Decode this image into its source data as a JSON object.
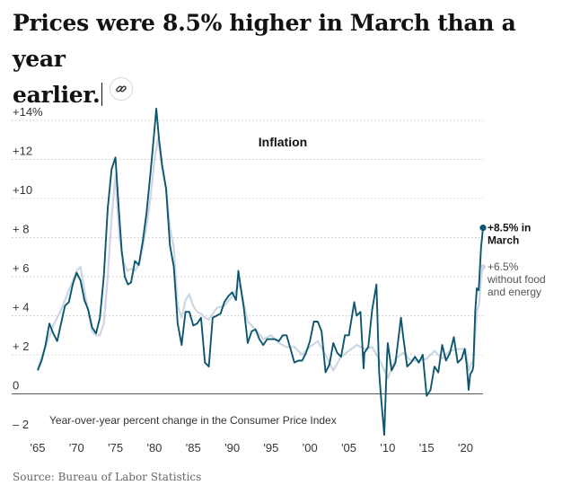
{
  "headline": {
    "line1": "Prices were 8.5% higher in March than a year",
    "line2": "earlier."
  },
  "link_icon": "link-icon",
  "source": "Source: Bureau of Labor Statistics",
  "colors": {
    "headline_series": "#0c5670",
    "core_series": "#ccd7e2",
    "zero_line": "#5a5a5a",
    "gridline": "#c8c8c8",
    "tick_text": "#333333",
    "annotation_core_text": "#555555"
  },
  "chart_data": {
    "type": "line",
    "title": "Inflation",
    "subtitle": "Year-over-year percent change in the Consumer Price Index",
    "xlabel": "",
    "ylabel": "",
    "xlim": [
      1965,
      2022.25
    ],
    "ylim": [
      -2,
      14
    ],
    "grid": true,
    "x_ticks": [
      1965,
      1970,
      1975,
      1980,
      1985,
      1990,
      1995,
      2000,
      2005,
      2010,
      2015,
      2020
    ],
    "x_tick_labels": [
      "'65",
      "'70",
      "'75",
      "'80",
      "'85",
      "'90",
      "'95",
      "'00",
      "'05",
      "'10",
      "'15",
      "'20"
    ],
    "y_ticks": [
      -2,
      0,
      2,
      4,
      6,
      8,
      10,
      12,
      14
    ],
    "y_tick_labels": [
      "– 2",
      "0",
      "+ 2",
      "+ 4",
      "+ 6",
      "+ 8",
      "+10",
      "+12",
      "+14%"
    ],
    "series": [
      {
        "name": "Consumer Price Index",
        "end_label": [
          "+8.5% in",
          "March"
        ],
        "points": [
          [
            1965.0,
            1.2
          ],
          [
            1965.5,
            1.7
          ],
          [
            1966.0,
            2.5
          ],
          [
            1966.5,
            3.6
          ],
          [
            1967.0,
            3.1
          ],
          [
            1967.5,
            2.7
          ],
          [
            1968.0,
            3.6
          ],
          [
            1968.5,
            4.5
          ],
          [
            1969.0,
            4.7
          ],
          [
            1969.5,
            5.6
          ],
          [
            1970.0,
            6.2
          ],
          [
            1970.5,
            5.8
          ],
          [
            1971.0,
            4.8
          ],
          [
            1971.5,
            4.3
          ],
          [
            1972.0,
            3.4
          ],
          [
            1972.5,
            3.1
          ],
          [
            1973.0,
            3.9
          ],
          [
            1973.5,
            6.0
          ],
          [
            1974.0,
            9.5
          ],
          [
            1974.5,
            11.5
          ],
          [
            1975.0,
            12.1
          ],
          [
            1975.4,
            9.6
          ],
          [
            1975.8,
            7.3
          ],
          [
            1976.2,
            6.0
          ],
          [
            1976.6,
            5.6
          ],
          [
            1977.0,
            5.7
          ],
          [
            1977.5,
            6.8
          ],
          [
            1978.0,
            6.6
          ],
          [
            1978.5,
            7.8
          ],
          [
            1979.0,
            9.3
          ],
          [
            1979.5,
            11.3
          ],
          [
            1980.0,
            13.5
          ],
          [
            1980.25,
            14.6
          ],
          [
            1980.6,
            13.0
          ],
          [
            1981.0,
            11.7
          ],
          [
            1981.5,
            10.5
          ],
          [
            1982.0,
            7.6
          ],
          [
            1982.5,
            6.5
          ],
          [
            1983.0,
            3.6
          ],
          [
            1983.5,
            2.5
          ],
          [
            1984.0,
            4.2
          ],
          [
            1984.5,
            4.2
          ],
          [
            1985.0,
            3.5
          ],
          [
            1985.5,
            3.6
          ],
          [
            1986.0,
            3.9
          ],
          [
            1986.5,
            1.6
          ],
          [
            1987.0,
            1.4
          ],
          [
            1987.5,
            3.9
          ],
          [
            1988.0,
            4.0
          ],
          [
            1988.5,
            4.1
          ],
          [
            1989.0,
            4.7
          ],
          [
            1989.5,
            5.0
          ],
          [
            1990.0,
            5.2
          ],
          [
            1990.5,
            4.8
          ],
          [
            1990.8,
            6.3
          ],
          [
            1991.0,
            5.7
          ],
          [
            1991.5,
            4.4
          ],
          [
            1992.0,
            2.6
          ],
          [
            1992.5,
            3.2
          ],
          [
            1993.0,
            3.3
          ],
          [
            1993.5,
            2.8
          ],
          [
            1994.0,
            2.5
          ],
          [
            1994.5,
            2.8
          ],
          [
            1995.0,
            2.8
          ],
          [
            1995.5,
            2.8
          ],
          [
            1996.0,
            2.7
          ],
          [
            1996.5,
            3.0
          ],
          [
            1997.0,
            3.0
          ],
          [
            1997.5,
            2.3
          ],
          [
            1998.0,
            1.6
          ],
          [
            1998.5,
            1.7
          ],
          [
            1999.0,
            1.7
          ],
          [
            1999.5,
            2.1
          ],
          [
            2000.0,
            2.7
          ],
          [
            2000.5,
            3.7
          ],
          [
            2001.0,
            3.7
          ],
          [
            2001.5,
            3.2
          ],
          [
            2002.0,
            1.1
          ],
          [
            2002.5,
            1.5
          ],
          [
            2003.0,
            2.6
          ],
          [
            2003.5,
            2.1
          ],
          [
            2004.0,
            1.9
          ],
          [
            2004.5,
            3.0
          ],
          [
            2005.0,
            3.0
          ],
          [
            2005.7,
            4.7
          ],
          [
            2006.0,
            4.0
          ],
          [
            2006.5,
            4.2
          ],
          [
            2006.9,
            1.3
          ],
          [
            2007.0,
            2.1
          ],
          [
            2007.5,
            2.4
          ],
          [
            2008.0,
            4.3
          ],
          [
            2008.55,
            5.6
          ],
          [
            2008.9,
            1.1
          ],
          [
            2009.1,
            0.0
          ],
          [
            2009.55,
            -2.1
          ],
          [
            2009.9,
            1.8
          ],
          [
            2010.0,
            2.6
          ],
          [
            2010.5,
            1.2
          ],
          [
            2011.0,
            1.6
          ],
          [
            2011.7,
            3.9
          ],
          [
            2012.0,
            2.9
          ],
          [
            2012.5,
            1.4
          ],
          [
            2013.0,
            1.6
          ],
          [
            2013.5,
            1.9
          ],
          [
            2014.0,
            1.6
          ],
          [
            2014.5,
            2.0
          ],
          [
            2015.0,
            -0.1
          ],
          [
            2015.5,
            0.2
          ],
          [
            2016.0,
            1.4
          ],
          [
            2016.5,
            1.1
          ],
          [
            2017.0,
            2.5
          ],
          [
            2017.5,
            1.7
          ],
          [
            2018.0,
            2.1
          ],
          [
            2018.5,
            2.9
          ],
          [
            2019.0,
            1.6
          ],
          [
            2019.5,
            1.8
          ],
          [
            2019.9,
            2.3
          ],
          [
            2020.15,
            1.5
          ],
          [
            2020.4,
            0.2
          ],
          [
            2020.6,
            1.0
          ],
          [
            2020.9,
            1.2
          ],
          [
            2021.0,
            1.4
          ],
          [
            2021.25,
            4.2
          ],
          [
            2021.45,
            5.4
          ],
          [
            2021.7,
            5.3
          ],
          [
            2021.9,
            6.8
          ],
          [
            2022.0,
            7.5
          ],
          [
            2022.1,
            7.9
          ],
          [
            2022.25,
            8.5
          ]
        ]
      },
      {
        "name": "Without food and energy",
        "end_label": [
          "+6.5%",
          "without food",
          "and energy"
        ],
        "points": [
          [
            1965.0,
            1.3
          ],
          [
            1966.0,
            2.4
          ],
          [
            1967.0,
            3.5
          ],
          [
            1968.0,
            4.3
          ],
          [
            1969.0,
            5.3
          ],
          [
            1970.0,
            6.3
          ],
          [
            1970.5,
            6.5
          ],
          [
            1971.0,
            5.3
          ],
          [
            1971.5,
            4.2
          ],
          [
            1972.0,
            3.2
          ],
          [
            1972.5,
            3.0
          ],
          [
            1973.0,
            3.0
          ],
          [
            1973.5,
            3.6
          ],
          [
            1974.0,
            6.0
          ],
          [
            1974.5,
            9.0
          ],
          [
            1975.0,
            11.2
          ],
          [
            1975.5,
            8.0
          ],
          [
            1976.0,
            6.8
          ],
          [
            1976.5,
            6.3
          ],
          [
            1977.0,
            6.4
          ],
          [
            1977.5,
            6.3
          ],
          [
            1978.0,
            6.6
          ],
          [
            1978.5,
            7.5
          ],
          [
            1979.0,
            8.6
          ],
          [
            1979.5,
            10.0
          ],
          [
            1980.0,
            12.0
          ],
          [
            1980.5,
            13.1
          ],
          [
            1981.0,
            11.5
          ],
          [
            1981.5,
            10.5
          ],
          [
            1982.0,
            8.5
          ],
          [
            1982.5,
            7.5
          ],
          [
            1983.0,
            4.5
          ],
          [
            1983.5,
            3.9
          ],
          [
            1984.0,
            4.8
          ],
          [
            1984.5,
            5.1
          ],
          [
            1985.0,
            4.5
          ],
          [
            1985.5,
            4.2
          ],
          [
            1986.0,
            4.1
          ],
          [
            1986.5,
            3.9
          ],
          [
            1987.0,
            3.8
          ],
          [
            1988.0,
            4.4
          ],
          [
            1989.0,
            4.5
          ],
          [
            1990.0,
            5.0
          ],
          [
            1990.5,
            5.3
          ],
          [
            1991.0,
            5.6
          ],
          [
            1991.5,
            4.6
          ],
          [
            1992.0,
            3.7
          ],
          [
            1993.0,
            3.3
          ],
          [
            1994.0,
            2.8
          ],
          [
            1995.0,
            3.0
          ],
          [
            1996.0,
            2.6
          ],
          [
            1997.0,
            2.4
          ],
          [
            1998.0,
            2.4
          ],
          [
            1999.0,
            2.0
          ],
          [
            2000.0,
            2.4
          ],
          [
            2001.0,
            2.7
          ],
          [
            2002.0,
            2.0
          ],
          [
            2003.0,
            1.2
          ],
          [
            2004.0,
            1.9
          ],
          [
            2005.0,
            2.2
          ],
          [
            2006.0,
            2.5
          ],
          [
            2007.0,
            2.3
          ],
          [
            2008.0,
            2.4
          ],
          [
            2009.0,
            1.7
          ],
          [
            2010.0,
            0.8
          ],
          [
            2011.0,
            1.8
          ],
          [
            2012.0,
            2.1
          ],
          [
            2013.0,
            1.7
          ],
          [
            2014.0,
            1.7
          ],
          [
            2015.0,
            1.8
          ],
          [
            2016.0,
            2.2
          ],
          [
            2017.0,
            1.8
          ],
          [
            2018.0,
            2.2
          ],
          [
            2019.0,
            2.3
          ],
          [
            2020.0,
            2.3
          ],
          [
            2020.4,
            1.2
          ],
          [
            2020.8,
            1.6
          ],
          [
            2021.0,
            1.6
          ],
          [
            2021.25,
            3.0
          ],
          [
            2021.5,
            4.3
          ],
          [
            2021.75,
            4.6
          ],
          [
            2022.0,
            6.0
          ],
          [
            2022.25,
            6.5
          ]
        ]
      }
    ]
  }
}
